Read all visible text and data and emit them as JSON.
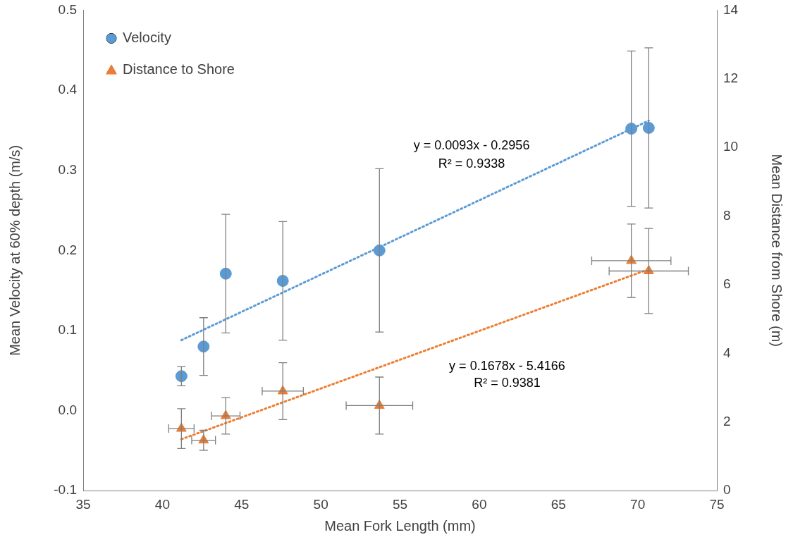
{
  "chart_data": {
    "type": "scatter",
    "xlabel": "Mean Fork Length (mm)",
    "ylabel": "Mean Velocity at 60% depth (m/s)",
    "y2label": "Mean Distance from Shore (m)",
    "xlim": [
      35,
      75
    ],
    "xticks": [
      35,
      40,
      45,
      50,
      55,
      60,
      65,
      70,
      75
    ],
    "ylim": [
      -0.1,
      0.5
    ],
    "yticks": [
      -0.1,
      {
        "value": 0,
        "label": "0.0"
      },
      0.1,
      0.2,
      0.3,
      0.4,
      0.5
    ],
    "y2lim": [
      0,
      14
    ],
    "y2ticks": [
      0,
      2,
      4,
      6,
      8,
      10,
      12,
      14
    ],
    "grid": false,
    "legend": "top left",
    "series": [
      {
        "name": "Velocity",
        "marker": "circle",
        "color": "#5b9bd5",
        "x": [
          41.2,
          42.6,
          44.0,
          47.6,
          53.7,
          69.6,
          70.7
        ],
        "values": [
          0.043,
          0.08,
          0.171,
          0.162,
          0.2,
          0.352,
          0.353
        ],
        "errors": [
          0.012,
          0.036,
          0.074,
          0.074,
          0.102,
          0.097,
          0.1
        ]
      },
      {
        "name": "Distance to Shore",
        "marker": "triangle",
        "axis": "y2",
        "color": "#ed7d31",
        "x": [
          41.2,
          42.6,
          44.0,
          47.6,
          53.7,
          69.6,
          70.7
        ],
        "values": [
          1.81,
          1.47,
          2.18,
          2.9,
          2.48,
          6.7,
          6.4
        ],
        "errors": [
          0.58,
          0.29,
          0.53,
          0.83,
          0.83,
          1.07,
          1.24
        ],
        "xerrors": [
          0.8,
          0.75,
          0.9,
          1.3,
          2.1,
          2.5,
          2.5
        ]
      },
      {
        "type": "line",
        "line_style": "dotted",
        "marker": "none",
        "color": "#5b9bd5",
        "x": [
          41.2,
          70.7
        ],
        "values": [
          0.088,
          0.362
        ]
      },
      {
        "type": "line",
        "line_style": "dotted",
        "marker": "none",
        "axis": "y2",
        "color": "#ed7d31",
        "x": [
          41.2,
          70.7
        ],
        "values": [
          1.5,
          6.45
        ]
      }
    ],
    "annotations": [
      "y = 0.0093x - 0.2956",
      "R² = 0.9338",
      "y = 0.1678x - 5.4166",
      "R² = 0.9381"
    ]
  }
}
